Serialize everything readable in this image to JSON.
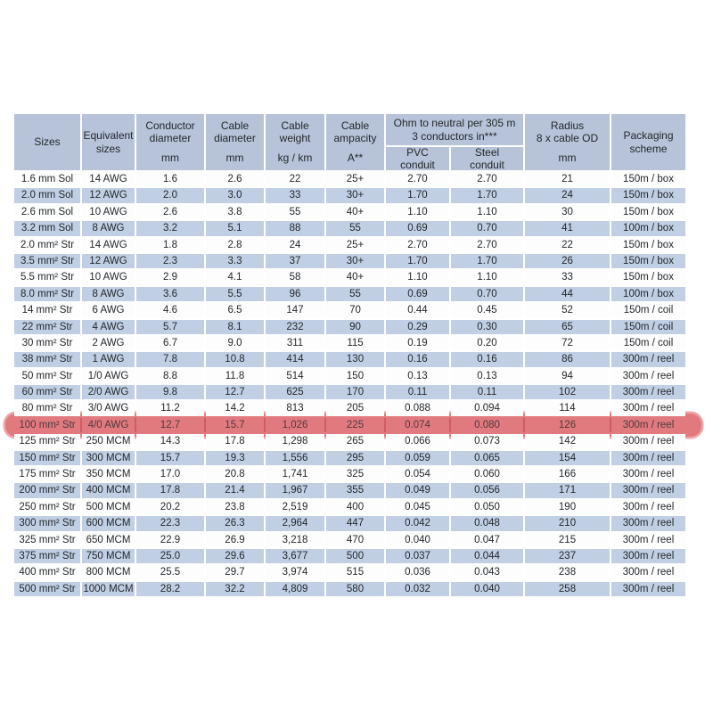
{
  "colors": {
    "page_bg": "#ffffff",
    "header_bg": "#b6c3d8",
    "row_blue": "#c0cfe4",
    "row_white": "#fdfdfd",
    "text": "#24282c",
    "hl_cell": "#e17a7f",
    "hl_gap": "#ce5c64",
    "hl_text": "#4f383c",
    "hl_halo": "#eea6aa"
  },
  "table": {
    "header": {
      "sizes": "Sizes",
      "equivalent": "Equivalent\nsizes",
      "conductor_diameter": "Conductor\ndiameter",
      "conductor_diameter_unit": "mm",
      "cable_diameter": "Cable\ndiameter",
      "cable_diameter_unit": "mm",
      "cable_weight": "Cable\nweight",
      "cable_weight_unit": "kg / km",
      "cable_ampacity": "Cable\nampacity",
      "cable_ampacity_unit": "A**",
      "ohm": "Ohm to neutral per 305 m\n3 conductors in***",
      "pvc": "PVC\nconduit",
      "steel": "Steel\nconduit",
      "radius": "Radius\n8 x cable OD",
      "radius_unit": "mm",
      "packaging": "Packaging\nscheme"
    },
    "highlighted_row_index": 15,
    "rows": [
      [
        "1.6 mm Sol",
        "14 AWG",
        "1.6",
        "2.6",
        "22",
        "25+",
        "2.70",
        "2.70",
        "21",
        "150m / box"
      ],
      [
        "2.0 mm Sol",
        "12 AWG",
        "2.0",
        "3.0",
        "33",
        "30+",
        "1.70",
        "1.70",
        "24",
        "150m / box"
      ],
      [
        "2.6 mm Sol",
        "10 AWG",
        "2.6",
        "3.8",
        "55",
        "40+",
        "1.10",
        "1.10",
        "30",
        "150m / box"
      ],
      [
        "3.2 mm Sol",
        "8 AWG",
        "3.2",
        "5.1",
        "88",
        "55",
        "0.69",
        "0.70",
        "41",
        "100m / box"
      ],
      [
        "2.0 mm² Str",
        "14 AWG",
        "1.8",
        "2.8",
        "24",
        "25+",
        "2.70",
        "2.70",
        "22",
        "150m / box"
      ],
      [
        "3.5 mm² Str",
        "12 AWG",
        "2.3",
        "3.3",
        "37",
        "30+",
        "1.70",
        "1.70",
        "26",
        "150m / box"
      ],
      [
        "5.5 mm² Str",
        "10 AWG",
        "2.9",
        "4.1",
        "58",
        "40+",
        "1.10",
        "1.10",
        "33",
        "150m / box"
      ],
      [
        "8.0 mm² Str",
        "8 AWG",
        "3.6",
        "5.5",
        "96",
        "55",
        "0.69",
        "0.70",
        "44",
        "100m / box"
      ],
      [
        "14 mm² Str",
        "6 AWG",
        "4.6",
        "6.5",
        "147",
        "70",
        "0.44",
        "0.45",
        "52",
        "150m / coil"
      ],
      [
        "22 mm² Str",
        "4 AWG",
        "5.7",
        "8.1",
        "232",
        "90",
        "0.29",
        "0.30",
        "65",
        "150m / coil"
      ],
      [
        "30 mm² Str",
        "2 AWG",
        "6.7",
        "9.0",
        "311",
        "115",
        "0.19",
        "0.20",
        "72",
        "150m / coil"
      ],
      [
        "38 mm² Str",
        "1 AWG",
        "7.8",
        "10.8",
        "414",
        "130",
        "0.16",
        "0.16",
        "86",
        "300m / reel"
      ],
      [
        "50 mm² Str",
        "1/0 AWG",
        "8.8",
        "11.8",
        "514",
        "150",
        "0.13",
        "0.13",
        "94",
        "300m / reel"
      ],
      [
        "60 mm² Str",
        "2/0 AWG",
        "9.8",
        "12.7",
        "625",
        "170",
        "0.11",
        "0.11",
        "102",
        "300m / reel"
      ],
      [
        "80 mm² Str",
        "3/0 AWG",
        "11.2",
        "14.2",
        "813",
        "205",
        "0.088",
        "0.094",
        "114",
        "300m / reel"
      ],
      [
        "100 mm² Str",
        "4/0 AWG",
        "12.7",
        "15.7",
        "1,026",
        "225",
        "0.074",
        "0.080",
        "126",
        "300m / reel"
      ],
      [
        "125 mm² Str",
        "250 MCM",
        "14.3",
        "17.8",
        "1,298",
        "265",
        "0.066",
        "0.073",
        "142",
        "300m / reel"
      ],
      [
        "150 mm² Str",
        "300 MCM",
        "15.7",
        "19.3",
        "1,556",
        "295",
        "0.059",
        "0.065",
        "154",
        "300m / reel"
      ],
      [
        "175 mm² Str",
        "350 MCM",
        "17.0",
        "20.8",
        "1,741",
        "325",
        "0.054",
        "0.060",
        "166",
        "300m / reel"
      ],
      [
        "200 mm² Str",
        "400 MCM",
        "17.8",
        "21.4",
        "1,967",
        "355",
        "0.049",
        "0.056",
        "171",
        "300m / reel"
      ],
      [
        "250 mm² Str",
        "500 MCM",
        "20.2",
        "23.8",
        "2,519",
        "400",
        "0.045",
        "0.050",
        "190",
        "300m / reel"
      ],
      [
        "300 mm² Str",
        "600 MCM",
        "22.3",
        "26.3",
        "2,964",
        "447",
        "0.042",
        "0.048",
        "210",
        "300m / reel"
      ],
      [
        "325 mm² Str",
        "650 MCM",
        "22.9",
        "26.9",
        "3,218",
        "470",
        "0.040",
        "0.047",
        "215",
        "300m / reel"
      ],
      [
        "375 mm² Str",
        "750 MCM",
        "25.0",
        "29.6",
        "3,677",
        "500",
        "0.037",
        "0.044",
        "237",
        "300m / reel"
      ],
      [
        "400 mm² Str",
        "800 MCM",
        "25.5",
        "29.7",
        "3,974",
        "515",
        "0.036",
        "0.043",
        "238",
        "300m / reel"
      ],
      [
        "500 mm² Str",
        "1000 MCM",
        "28.2",
        "32.2",
        "4,809",
        "580",
        "0.032",
        "0.040",
        "258",
        "300m / reel"
      ]
    ]
  }
}
